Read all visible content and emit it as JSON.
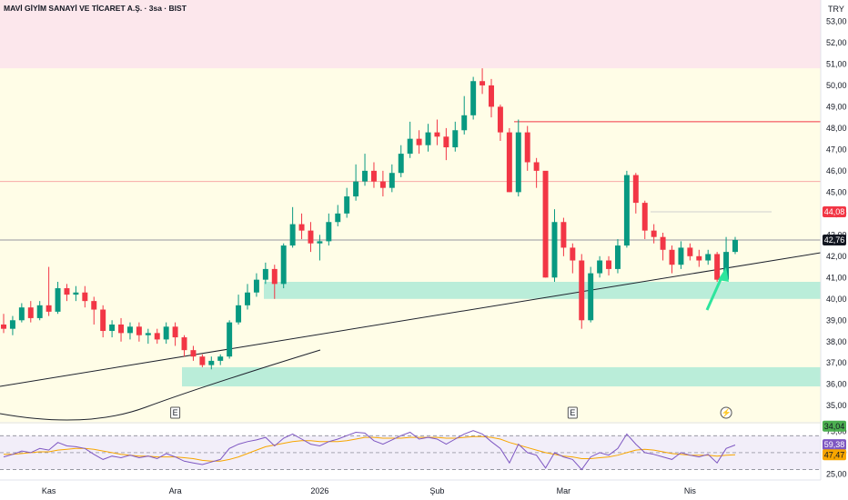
{
  "header": {
    "title": "MAVİ GİYİM SANAYİ VE TİCARET A.Ş. · 3sa · BIST",
    "currency": "TRY"
  },
  "chart_data": {
    "type": "candlestick",
    "symbol": "MAVI",
    "timeframe": "3sa",
    "exchange": "BIST",
    "currency": "TRY",
    "ylim": [
      34.2,
      54.0
    ],
    "y_ticks": [
      "53,00",
      "52,00",
      "51,00",
      "50,00",
      "49,00",
      "48,00",
      "47,00",
      "46,00",
      "45,00",
      "44,00",
      "43,00",
      "42,00",
      "41,00",
      "40,00",
      "39,00",
      "38,00",
      "37,00",
      "36,00",
      "35,00"
    ],
    "x_ticks": [
      {
        "label": "Kas",
        "index": 5
      },
      {
        "label": "Ara",
        "index": 19
      },
      {
        "label": "2026",
        "index": 35
      },
      {
        "label": "Şub",
        "index": 48
      },
      {
        "label": "Mar",
        "index": 62
      },
      {
        "label": "Nis",
        "index": 76
      }
    ],
    "candles": [
      [
        38.8,
        38.6,
        39.3,
        38.4
      ],
      [
        38.6,
        39.0,
        39.2,
        38.3
      ],
      [
        39.0,
        39.6,
        39.8,
        38.9
      ],
      [
        39.6,
        39.1,
        39.9,
        38.9
      ],
      [
        39.1,
        39.7,
        39.9,
        39.0
      ],
      [
        39.7,
        39.4,
        41.5,
        39.2
      ],
      [
        39.4,
        40.5,
        40.8,
        39.3
      ],
      [
        40.5,
        40.2,
        40.7,
        39.9
      ],
      [
        40.2,
        40.3,
        40.6,
        39.9
      ],
      [
        40.3,
        39.9,
        40.6,
        39.6
      ],
      [
        39.9,
        39.5,
        40.1,
        38.8
      ],
      [
        39.5,
        38.5,
        39.7,
        38.2
      ],
      [
        38.5,
        38.8,
        39.0,
        38.2
      ],
      [
        38.8,
        38.4,
        39.1,
        38.0
      ],
      [
        38.4,
        38.7,
        38.9,
        38.1
      ],
      [
        38.7,
        38.3,
        38.9,
        38.0
      ],
      [
        38.3,
        38.4,
        38.6,
        37.9
      ],
      [
        38.4,
        38.1,
        38.6,
        37.9
      ],
      [
        38.1,
        38.7,
        38.9,
        37.9
      ],
      [
        38.7,
        38.2,
        38.9,
        37.8
      ],
      [
        38.2,
        37.6,
        38.3,
        37.3
      ],
      [
        37.6,
        37.3,
        37.8,
        37.1
      ],
      [
        37.3,
        36.9,
        37.4,
        36.8
      ],
      [
        36.9,
        37.1,
        37.3,
        36.7
      ],
      [
        37.1,
        37.3,
        37.4,
        36.9
      ],
      [
        37.3,
        38.9,
        39.0,
        37.2
      ],
      [
        38.9,
        39.7,
        40.2,
        38.8
      ],
      [
        39.7,
        40.3,
        40.7,
        39.5
      ],
      [
        40.3,
        40.9,
        41.2,
        40.1
      ],
      [
        40.9,
        41.4,
        41.7,
        40.7
      ],
      [
        41.4,
        40.7,
        41.6,
        40.0
      ],
      [
        40.7,
        42.5,
        42.6,
        40.5
      ],
      [
        42.5,
        43.5,
        44.3,
        42.4
      ],
      [
        43.5,
        43.2,
        44.0,
        42.8
      ],
      [
        43.2,
        42.6,
        43.6,
        42.2
      ],
      [
        42.6,
        42.7,
        43.0,
        41.8
      ],
      [
        42.7,
        43.6,
        44.0,
        42.5
      ],
      [
        43.6,
        44.0,
        44.4,
        43.4
      ],
      [
        44.0,
        44.8,
        45.2,
        43.8
      ],
      [
        44.8,
        45.5,
        46.3,
        44.6
      ],
      [
        45.5,
        46.0,
        46.8,
        45.3
      ],
      [
        46.0,
        45.5,
        46.4,
        45.2
      ],
      [
        45.5,
        45.2,
        46.0,
        44.8
      ],
      [
        45.2,
        45.9,
        46.3,
        45.0
      ],
      [
        45.9,
        46.8,
        47.2,
        45.7
      ],
      [
        46.8,
        47.5,
        48.3,
        46.6
      ],
      [
        47.5,
        47.2,
        47.9,
        46.8
      ],
      [
        47.2,
        47.8,
        48.2,
        46.9
      ],
      [
        47.8,
        47.6,
        48.4,
        47.2
      ],
      [
        47.6,
        47.1,
        48.0,
        46.5
      ],
      [
        47.1,
        47.9,
        48.3,
        46.9
      ],
      [
        47.9,
        48.6,
        49.5,
        47.7
      ],
      [
        48.6,
        50.2,
        50.4,
        48.4
      ],
      [
        50.2,
        50.0,
        50.8,
        49.6
      ],
      [
        50.0,
        49.0,
        50.3,
        48.5
      ],
      [
        49.0,
        47.8,
        49.1,
        47.4
      ],
      [
        47.8,
        45.0,
        48.0,
        45.0
      ],
      [
        45.0,
        47.8,
        48.4,
        44.8
      ],
      [
        47.8,
        46.4,
        48.1,
        46.0
      ],
      [
        46.4,
        46.0,
        46.6,
        45.2
      ],
      [
        46.0,
        41.0,
        44.5,
        41.0
      ],
      [
        41.0,
        43.6,
        44.2,
        40.8
      ],
      [
        43.6,
        42.4,
        43.8,
        42.0
      ],
      [
        42.4,
        41.8,
        42.6,
        41.2
      ],
      [
        41.8,
        39.0,
        42.1,
        38.6
      ],
      [
        39.0,
        41.2,
        41.5,
        38.9
      ],
      [
        41.2,
        41.8,
        42.0,
        41.0
      ],
      [
        41.8,
        41.4,
        42.0,
        41.1
      ],
      [
        41.4,
        42.5,
        42.8,
        41.2
      ],
      [
        42.5,
        45.8,
        46.0,
        42.4
      ],
      [
        45.8,
        44.5,
        45.9,
        44.0
      ],
      [
        44.5,
        43.2,
        44.6,
        42.8
      ],
      [
        43.2,
        42.9,
        43.5,
        42.6
      ],
      [
        42.9,
        42.3,
        43.1,
        41.8
      ],
      [
        42.3,
        41.6,
        42.5,
        41.2
      ],
      [
        41.6,
        42.4,
        42.7,
        41.4
      ],
      [
        42.4,
        42.0,
        42.6,
        41.8
      ],
      [
        42.0,
        41.8,
        42.3,
        41.5
      ],
      [
        41.8,
        42.1,
        42.3,
        41.6
      ],
      [
        42.1,
        40.9,
        42.2,
        40.8
      ],
      [
        40.9,
        42.2,
        42.9,
        40.9
      ],
      [
        42.2,
        42.76,
        42.9,
        42.1
      ]
    ],
    "horizontal_levels": [
      {
        "value": 48.3,
        "color": "#f23645"
      },
      {
        "value": 45.5,
        "color": "#f7a9a7"
      },
      {
        "value": 44.08,
        "color": "#cfcfcf"
      },
      {
        "value": 42.76,
        "color": "#9598a1"
      },
      {
        "value": 34.04,
        "color": "#4caf50"
      }
    ],
    "zones": [
      {
        "from": 50.8,
        "to": 54.0,
        "color": "#fce4ec"
      },
      {
        "from": 40.0,
        "to": 40.8,
        "color": "#b2ebd7"
      },
      {
        "from": 35.9,
        "to": 36.8,
        "color": "#b2ebd7"
      }
    ],
    "price_labels": [
      {
        "text": "44,08",
        "value": 44.08,
        "color": "#f23645",
        "text_color": "#ffffff"
      },
      {
        "text": "42,76",
        "value": 42.76,
        "color": "#131722",
        "text_color": "#ffffff"
      },
      {
        "text": "34,04",
        "value": 34.04,
        "color": "#4caf50",
        "text_color": "#131722"
      }
    ],
    "markers": [
      {
        "text": "E",
        "index": 19
      },
      {
        "text": "E",
        "index": 63
      },
      {
        "text": "⚡",
        "index": 80
      }
    ],
    "rsi": {
      "ylim": [
        20,
        82
      ],
      "ticks": [
        "75,00",
        "50,00",
        "25,00"
      ],
      "levels": [
        70,
        50,
        30
      ],
      "value": "59,38",
      "ma_value": "47,47",
      "value_color": "#7e57c2",
      "ma_color": "#f7a600",
      "series": [
        45,
        48,
        52,
        50,
        55,
        53,
        62,
        58,
        57,
        55,
        48,
        42,
        46,
        44,
        47,
        44,
        46,
        43,
        49,
        45,
        40,
        38,
        36,
        39,
        42,
        55,
        60,
        63,
        65,
        68,
        58,
        67,
        72,
        66,
        60,
        58,
        63,
        66,
        70,
        74,
        73,
        64,
        60,
        65,
        70,
        74,
        66,
        68,
        66,
        60,
        66,
        72,
        76,
        72,
        63,
        55,
        38,
        60,
        50,
        47,
        32,
        50,
        45,
        42,
        30,
        45,
        50,
        47,
        55,
        72,
        60,
        50,
        48,
        45,
        42,
        50,
        47,
        45,
        48,
        38,
        55,
        59
      ],
      "ma_series": [
        48,
        48,
        49,
        50,
        51,
        51,
        53,
        54,
        55,
        55,
        54,
        52,
        50,
        48,
        47,
        46,
        46,
        45,
        45,
        45,
        44,
        43,
        41,
        40,
        40,
        42,
        45,
        49,
        53,
        57,
        59,
        61,
        63,
        64,
        64,
        63,
        63,
        63,
        64,
        66,
        68,
        68,
        67,
        67,
        67,
        68,
        68,
        68,
        68,
        67,
        67,
        68,
        69,
        69,
        68,
        66,
        62,
        59,
        56,
        53,
        50,
        48,
        46,
        45,
        43,
        43,
        44,
        45,
        47,
        50,
        53,
        54,
        53,
        51,
        49,
        48,
        47,
        47,
        47,
        46,
        47,
        47.47
      ]
    }
  }
}
